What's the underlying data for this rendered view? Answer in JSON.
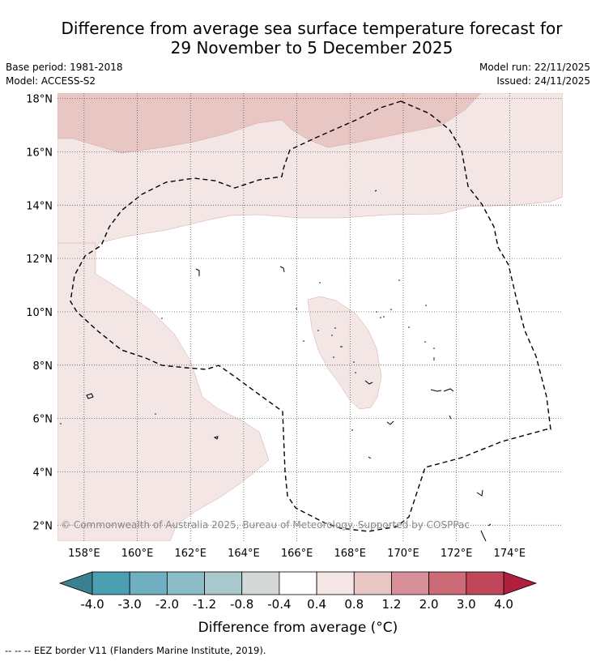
{
  "title": {
    "line1": "Difference from average sea surface temperature forecast for",
    "line2": "29 November to 5 December 2025"
  },
  "meta": {
    "base_period": "Base period: 1981-2018",
    "model": "Model: ACCESS-S2",
    "model_run": "Model run: 22/11/2025",
    "issued": "Issued: 24/11/2025"
  },
  "map": {
    "lon_range": [
      157,
      176
    ],
    "lat_range": [
      1.4,
      18.2
    ],
    "lon_ticks": [
      {
        "value": 158,
        "label": "158°E"
      },
      {
        "value": 160,
        "label": "160°E"
      },
      {
        "value": 162,
        "label": "162°E"
      },
      {
        "value": 164,
        "label": "164°E"
      },
      {
        "value": 166,
        "label": "166°E"
      },
      {
        "value": 168,
        "label": "168°E"
      },
      {
        "value": 170,
        "label": "170°E"
      },
      {
        "value": 172,
        "label": "172°E"
      },
      {
        "value": 174,
        "label": "174°E"
      }
    ],
    "lat_ticks": [
      {
        "value": 2,
        "label": "2°N"
      },
      {
        "value": 4,
        "label": "4°N"
      },
      {
        "value": 6,
        "label": "6°N"
      },
      {
        "value": 8,
        "label": "8°N"
      },
      {
        "value": 10,
        "label": "10°N"
      },
      {
        "value": 12,
        "label": "12°N"
      },
      {
        "value": 14,
        "label": "14°N"
      },
      {
        "value": 16,
        "label": "16°N"
      },
      {
        "value": 18,
        "label": "18°N"
      }
    ],
    "copyright": "© Commonwealth of Australia 2025, Bureau of Meteorology. Supported by COSPPac",
    "colors": {
      "band_0_4_0_8": "#f4e6e5",
      "band_0_8_1_2": "#e8c6c3",
      "neutral": "#ffffff"
    }
  },
  "colorbar": {
    "label": "Difference from average (°C)",
    "ticks": [
      "-4.0",
      "-3.0",
      "-2.0",
      "-1.2",
      "-0.8",
      "-0.4",
      "0.4",
      "0.8",
      "1.2",
      "2.0",
      "3.0",
      "4.0"
    ],
    "colors": [
      "#4a9fb3",
      "#6eafc0",
      "#8cbcc8",
      "#a9c8cd",
      "#d4d8d8",
      "#ffffff",
      "#f4e6e5",
      "#e8c6c3",
      "#d98f97",
      "#cc6a76",
      "#c0475a"
    ],
    "under_color": "#3b8090",
    "over_color": "#b11f3f"
  },
  "legend": {
    "eez_symbol": "-- -- --",
    "eez_label": "EEZ border V11 (Flanders Marine Institute, 2019)."
  }
}
